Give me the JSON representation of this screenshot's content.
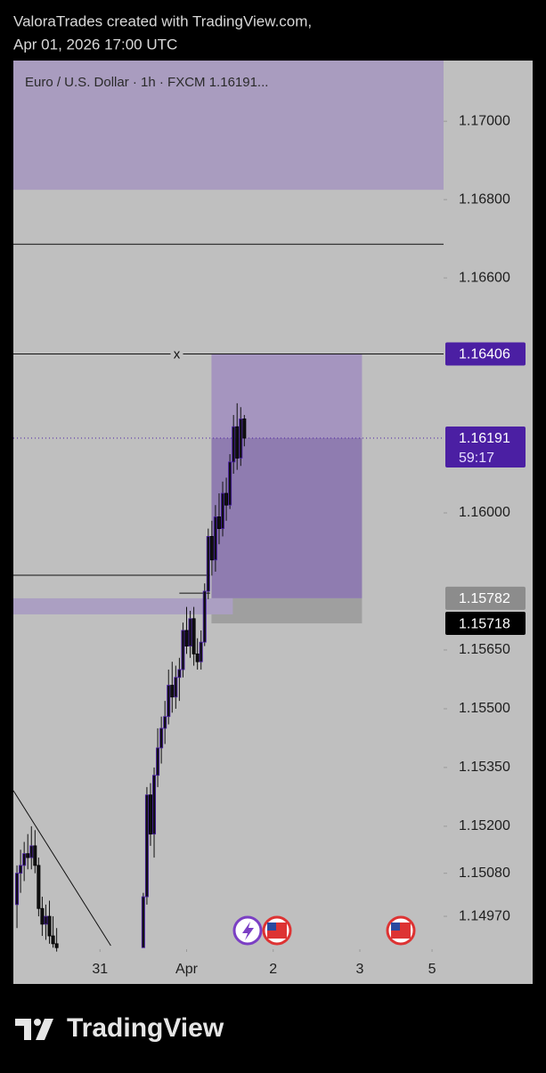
{
  "header": {
    "line1": "ValoraTrades created with TradingView.com,",
    "line2": "Apr 01, 2026 17:00 UTC"
  },
  "footer": "TradingView",
  "chart_data": {
    "type": "candlestick",
    "legend": "Euro / U.S. Dollar · 1h · FXCM 1.16191...",
    "up_color": "#4b1fa8",
    "down_color": "#000000",
    "ylim": [
      1.14886,
      1.17155
    ],
    "yticks": [
      {
        "value": 1.17,
        "label": "1.17000"
      },
      {
        "value": 1.168,
        "label": "1.16800"
      },
      {
        "value": 1.166,
        "label": "1.16600"
      },
      {
        "value": 1.16,
        "label": "1.16000"
      },
      {
        "value": 1.1565,
        "label": "1.15650"
      },
      {
        "value": 1.155,
        "label": "1.15500"
      },
      {
        "value": 1.1535,
        "label": "1.15350"
      },
      {
        "value": 1.152,
        "label": "1.15200"
      },
      {
        "value": 1.1508,
        "label": "1.15080"
      },
      {
        "value": 1.1497,
        "label": "1.14970"
      }
    ],
    "xlim": [
      -24,
      95.2
    ],
    "xticks": [
      {
        "value": 0,
        "label": "31"
      },
      {
        "value": 24,
        "label": "Apr"
      },
      {
        "value": 48,
        "label": "2"
      },
      {
        "value": 72,
        "label": "3"
      },
      {
        "value": 92,
        "label": "5"
      }
    ],
    "x": [
      -23,
      -22,
      -21,
      -20,
      -19,
      -18,
      -17,
      -16,
      -15,
      -14,
      -13,
      -12,
      12,
      13,
      14,
      15,
      16,
      17,
      18,
      19,
      20,
      21,
      22,
      23,
      24,
      25,
      26,
      27,
      28,
      29,
      30,
      31,
      32,
      33,
      34,
      35,
      36,
      37,
      38,
      39,
      40
    ],
    "open": [
      1.15,
      1.1508,
      1.151,
      1.1513,
      1.1512,
      1.1515,
      1.151,
      1.1499,
      1.1495,
      1.1497,
      1.1492,
      1.149,
      1.1489,
      1.1502,
      1.1528,
      1.1518,
      1.1533,
      1.154,
      1.1545,
      1.1548,
      1.1556,
      1.1553,
      1.1558,
      1.156,
      1.157,
      1.1566,
      1.1573,
      1.1564,
      1.1562,
      1.1567,
      1.158,
      1.1594,
      1.1588,
      1.1599,
      1.1596,
      1.1605,
      1.1602,
      1.1613,
      1.1622,
      1.1614,
      1.1624
    ],
    "high": [
      1.151,
      1.1514,
      1.1516,
      1.1518,
      1.152,
      1.1519,
      1.1512,
      1.1502,
      1.15,
      1.1501,
      1.1497,
      1.1494,
      1.1503,
      1.153,
      1.1531,
      1.1535,
      1.1545,
      1.1548,
      1.1552,
      1.156,
      1.1562,
      1.1561,
      1.1563,
      1.1572,
      1.1576,
      1.1575,
      1.1576,
      1.1568,
      1.157,
      1.1582,
      1.1596,
      1.1598,
      1.1602,
      1.1605,
      1.1608,
      1.1609,
      1.1615,
      1.1625,
      1.1628,
      1.1627,
      1.1625
    ],
    "low": [
      1.1494,
      1.1503,
      1.1506,
      1.1509,
      1.1509,
      1.1508,
      1.1497,
      1.1492,
      1.1491,
      1.149,
      1.1489,
      1.1488,
      1.1489,
      1.15,
      1.1515,
      1.1512,
      1.153,
      1.1536,
      1.1541,
      1.1546,
      1.1549,
      1.155,
      1.1552,
      1.1558,
      1.1564,
      1.1563,
      1.1561,
      1.156,
      1.156,
      1.1566,
      1.1578,
      1.1584,
      1.1585,
      1.1592,
      1.1594,
      1.1598,
      1.1601,
      1.161,
      1.1611,
      1.1612,
      1.1617
    ],
    "close": [
      1.1508,
      1.151,
      1.1513,
      1.1512,
      1.1515,
      1.151,
      1.1499,
      1.1495,
      1.1497,
      1.1492,
      1.149,
      1.1489,
      1.1502,
      1.1528,
      1.1518,
      1.1533,
      1.154,
      1.1545,
      1.1548,
      1.1556,
      1.1553,
      1.1558,
      1.156,
      1.157,
      1.1566,
      1.1573,
      1.1564,
      1.1562,
      1.1567,
      1.158,
      1.1594,
      1.1588,
      1.1599,
      1.1596,
      1.1605,
      1.1602,
      1.1613,
      1.1622,
      1.1614,
      1.1624,
      1.16191
    ],
    "zones": [
      {
        "x0": -24,
        "x1": 95.2,
        "y0": 1.16825,
        "y1": 1.17155,
        "color": "#a99cbf"
      },
      {
        "x0": 30.9,
        "x1": 72.6,
        "y0": 1.16191,
        "y1": 1.16406,
        "color": "#a595bf"
      },
      {
        "x0": 30.9,
        "x1": 72.6,
        "y0": 1.15782,
        "y1": 1.16191,
        "color": "#8f7cb0"
      },
      {
        "x0": 30.9,
        "x1": 72.6,
        "y0": 1.15718,
        "y1": 1.15782,
        "color": "#9f9f9f"
      },
      {
        "x0": -24,
        "x1": 36.8,
        "y0": 1.15741,
        "y1": 1.15782,
        "color": "#ab9fc2"
      }
    ],
    "hlines": [
      {
        "value": 1.16686,
        "x0": -24,
        "x1": 95.2
      },
      {
        "value": 1.16406,
        "x0": -24,
        "x1": 95.2,
        "label": "x"
      },
      {
        "value": 1.15841,
        "x0": -24,
        "x1": 30.5
      },
      {
        "value": 1.15795,
        "x0": 22,
        "x1": 30.5
      }
    ],
    "trendline": {
      "x0": -24,
      "y0": 1.15291,
      "x1": 3,
      "y1": 1.14895
    },
    "price_badges": [
      {
        "value": 1.16406,
        "label": "1.16406",
        "color": "#4b1fa3"
      },
      {
        "value": 1.16191,
        "label": "1.16191",
        "countdown": "59:17",
        "color": "#4b1fa3"
      },
      {
        "value": 1.15782,
        "label": "1.15782",
        "color": "#8c8c8c"
      },
      {
        "value": 1.15718,
        "label": "1.15718",
        "color": "#000000"
      }
    ]
  }
}
